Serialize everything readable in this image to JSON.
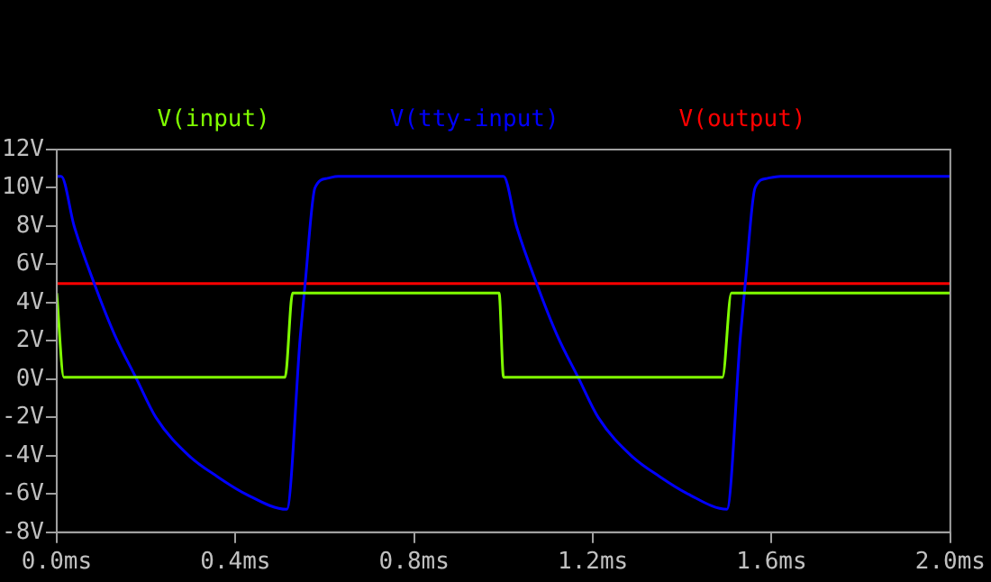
{
  "chart_data": {
    "type": "line",
    "xlim": [
      0,
      2
    ],
    "xticks": [
      {
        "value": 0,
        "label": "0.0ms"
      },
      {
        "value": 0.4,
        "label": "0.4ms"
      },
      {
        "value": 0.8,
        "label": "0.8ms"
      },
      {
        "value": 1.2,
        "label": "1.2ms"
      },
      {
        "value": 1.6,
        "label": "1.6ms"
      },
      {
        "value": 2,
        "label": "2.0ms"
      }
    ],
    "ylim": [
      -8,
      12
    ],
    "yticks": [
      {
        "value": -8,
        "label": "-8V"
      },
      {
        "value": -6,
        "label": "-6V"
      },
      {
        "value": -4,
        "label": "-4V"
      },
      {
        "value": -2,
        "label": "-2V"
      },
      {
        "value": 0,
        "label": "0V"
      },
      {
        "value": 2,
        "label": "2V"
      },
      {
        "value": 4,
        "label": "4V"
      },
      {
        "value": 6,
        "label": "6V"
      },
      {
        "value": 8,
        "label": "8V"
      },
      {
        "value": 10,
        "label": "10V"
      },
      {
        "value": 12,
        "label": "12V"
      }
    ],
    "grid": false,
    "legend": "top",
    "marker": "none",
    "line_style": "solid",
    "series": [
      {
        "name": "V(input)",
        "color": "#80ff00",
        "x": [
          0,
          0.016,
          0.511,
          0.528,
          0.99,
          1.0,
          1.49,
          1.51,
          2.0
        ],
        "values": [
          4.5,
          0.1,
          0.1,
          4.5,
          4.5,
          0.1,
          0.1,
          4.5,
          4.5
        ]
      },
      {
        "name": "V(tty-input)",
        "color": "#0000ff",
        "x": [
          0,
          0.01,
          0.039,
          0.084,
          0.13,
          0.179,
          0.222,
          0.296,
          0.36,
          0.423,
          0.515,
          0.545,
          0.556,
          0.578,
          0.606,
          0.63,
          1.0,
          1.029,
          1.074,
          1.12,
          1.169,
          1.212,
          1.286,
          1.35,
          1.413,
          1.5,
          1.53,
          1.541,
          1.563,
          1.591,
          1.62,
          2.0
        ],
        "values": [
          10.6,
          10.6,
          8,
          5,
          2.3,
          0,
          -2,
          -4,
          -5.1,
          -6,
          -6.8,
          2.2,
          5,
          10,
          10.5,
          10.6,
          10.6,
          8,
          5,
          2.3,
          0,
          -2,
          -4,
          -5.1,
          -6,
          -6.8,
          2.2,
          5,
          10,
          10.5,
          10.6,
          10.6
        ]
      },
      {
        "name": "V(output)",
        "color": "#ff0000",
        "x": [
          0,
          2
        ],
        "values": [
          5,
          5
        ]
      }
    ]
  }
}
